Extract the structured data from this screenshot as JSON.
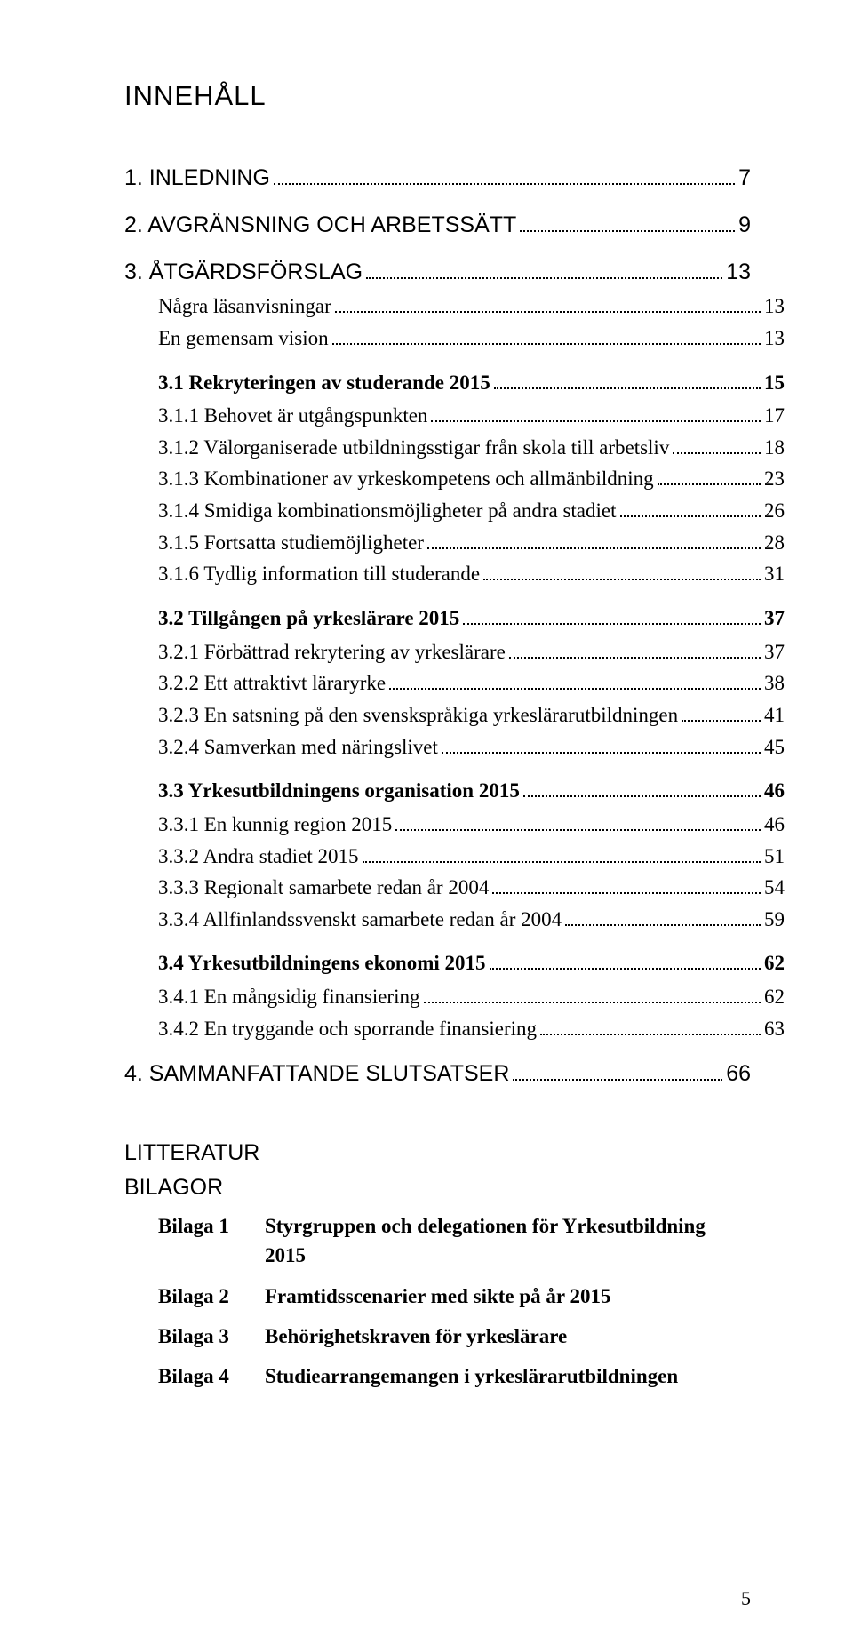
{
  "title": "INNEHÅLL",
  "toc": [
    {
      "label": "1. INLEDNING",
      "page": "7",
      "level": 1
    },
    {
      "label": "2. AVGRÄNSNING OCH ARBETSSÄTT",
      "page": "9",
      "level": 1
    },
    {
      "label": "3. ÅTGÄRDSFÖRSLAG",
      "page": "13",
      "level": 1
    },
    {
      "label": "Några läsanvisningar",
      "page": "13",
      "level": 2
    },
    {
      "label": "En gemensam vision",
      "page": "13",
      "level": 2
    },
    {
      "label": "3.1 Rekryteringen av studerande 2015",
      "page": "15",
      "level": 3
    },
    {
      "label": "3.1.1 Behovet är utgångspunkten",
      "page": "17",
      "level": 2
    },
    {
      "label": "3.1.2 Välorganiserade utbildningsstigar från skola till arbetsliv",
      "page": "18",
      "level": 2
    },
    {
      "label": "3.1.3 Kombinationer av yrkeskompetens och allmänbildning",
      "page": "23",
      "level": 2
    },
    {
      "label": "3.1.4 Smidiga kombinationsmöjligheter på andra stadiet",
      "page": "26",
      "level": 2
    },
    {
      "label": "3.1.5 Fortsatta studiemöjligheter",
      "page": "28",
      "level": 2
    },
    {
      "label": "3.1.6 Tydlig information till studerande",
      "page": "31",
      "level": 2
    },
    {
      "label": "3.2 Tillgången på yrkeslärare 2015",
      "page": "37",
      "level": 3
    },
    {
      "label": "3.2.1 Förbättrad rekrytering av yrkeslärare",
      "page": "37",
      "level": 2
    },
    {
      "label": "3.2.2 Ett attraktivt läraryrke",
      "page": "38",
      "level": 2
    },
    {
      "label": "3.2.3 En satsning på den svenskspråkiga yrkeslärarutbildningen",
      "page": "41",
      "level": 2
    },
    {
      "label": "3.2.4 Samverkan med näringslivet",
      "page": "45",
      "level": 2
    },
    {
      "label": "3.3 Yrkesutbildningens organisation 2015",
      "page": "46",
      "level": 3
    },
    {
      "label": "3.3.1 En kunnig region 2015",
      "page": "46",
      "level": 2
    },
    {
      "label": "3.3.2 Andra stadiet 2015",
      "page": "51",
      "level": 2
    },
    {
      "label": "3.3.3 Regionalt samarbete redan år 2004",
      "page": "54",
      "level": 2
    },
    {
      "label": "3.3.4 Allfinlandssvenskt samarbete redan år 2004",
      "page": "59",
      "level": 2
    },
    {
      "label": "3.4 Yrkesutbildningens ekonomi 2015",
      "page": "62",
      "level": 3
    },
    {
      "label": "3.4.1 En mångsidig finansiering",
      "page": "62",
      "level": 2
    },
    {
      "label": "3.4.2 En tryggande och sporrande finansiering",
      "page": "63",
      "level": 2
    },
    {
      "label": "4. SAMMANFATTANDE SLUTSATSER",
      "page": "66",
      "level": 1
    }
  ],
  "bottom": {
    "litteratur": "LITTERATUR",
    "bilagor": "BILAGOR",
    "items": [
      {
        "key": "Bilaga 1",
        "desc": "Styrgruppen och delegationen för Yrkesutbildning 2015"
      },
      {
        "key": "Bilaga 2",
        "desc": "Framtidsscenarier med sikte på år 2015"
      },
      {
        "key": "Bilaga 3",
        "desc": "Behörighetskraven för yrkeslärare"
      },
      {
        "key": "Bilaga 4",
        "desc": "Studiearrangemangen i yrkeslärarutbildningen"
      }
    ]
  },
  "page_number": "5"
}
